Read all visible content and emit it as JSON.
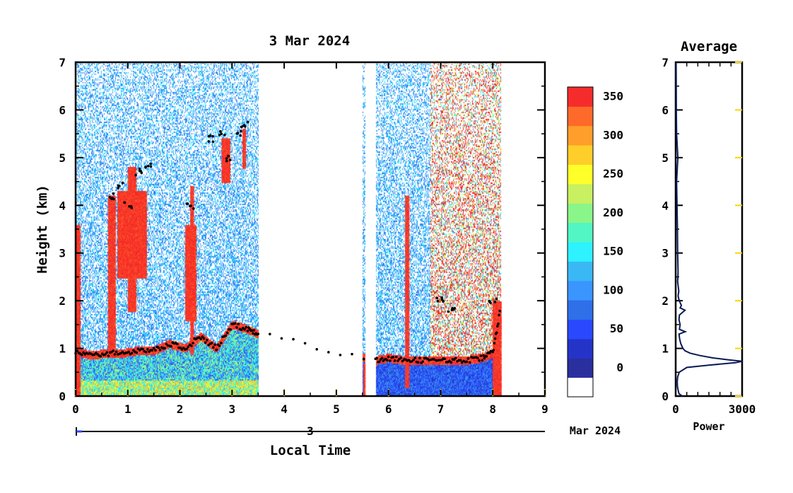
{
  "chart_data": [
    {
      "type": "heatmap",
      "title": "3 Mar 2024",
      "xlabel": "Local Time",
      "ylabel": "Height (km)",
      "xlim": [
        0,
        9
      ],
      "ylim": [
        0,
        7
      ],
      "x_ticks": [
        "0",
        "1",
        "2",
        "3",
        "4",
        "5",
        "6",
        "7",
        "8",
        "9"
      ],
      "y_ticks": [
        "0",
        "1",
        "2",
        "3",
        "4",
        "5",
        "6",
        "7"
      ],
      "date_axis": {
        "day_label": "3",
        "month_year_label": "Mar 2024"
      },
      "data_segments": [
        {
          "start": 0.0,
          "end": 3.5
        },
        {
          "start": 5.5,
          "end": 5.55
        },
        {
          "start": 5.75,
          "end": 8.15
        }
      ],
      "cloud_base_heights_km": {
        "x": [
          0.0,
          0.3,
          0.6,
          0.9,
          1.2,
          1.5,
          1.8,
          2.1,
          2.4,
          2.7,
          3.0,
          3.3,
          3.5,
          5.75,
          6.0,
          6.3,
          6.6,
          6.9,
          7.2,
          7.5,
          7.8,
          8.0,
          8.15
        ],
        "y": [
          0.95,
          0.85,
          0.9,
          0.9,
          0.95,
          0.95,
          1.1,
          1.0,
          1.25,
          1.0,
          1.5,
          1.4,
          1.3,
          0.75,
          0.8,
          0.75,
          0.75,
          0.75,
          0.75,
          0.75,
          0.8,
          0.9,
          1.85
        ]
      },
      "upper_cloud_tops_km": {
        "x": [
          0.7,
          0.85,
          1.0,
          1.2,
          1.4,
          2.2,
          2.6,
          2.8,
          2.95,
          3.1,
          3.25,
          7.0,
          7.2,
          8.0
        ],
        "y": [
          4.2,
          4.4,
          4.0,
          4.7,
          4.8,
          4.0,
          5.4,
          5.5,
          5.0,
          5.5,
          5.7,
          2.0,
          1.8,
          2.0
        ]
      },
      "colorbar": {
        "ticks": [
          "0",
          "50",
          "100",
          "150",
          "200",
          "250",
          "300",
          "350"
        ],
        "colors": [
          "#ffffff",
          "#2a2f9e",
          "#2534c8",
          "#2a49ff",
          "#2f6fe8",
          "#3a95ff",
          "#3ab8f5",
          "#2ef2ff",
          "#52f5c4",
          "#8af589",
          "#c8f060",
          "#ffff2a",
          "#ffce2a",
          "#ff9e2a",
          "#ff6a2a",
          "#f52c2c"
        ]
      }
    },
    {
      "type": "line",
      "title": "Average",
      "xlabel": "Power",
      "xlim": [
        0,
        3000
      ],
      "ylim": [
        0,
        7
      ],
      "x_ticks": [
        "0",
        "3000"
      ],
      "y_ticks": [
        "0",
        "1",
        "2",
        "3",
        "4",
        "5",
        "6",
        "7"
      ],
      "series": [
        {
          "values_height_km": [
            0.0,
            0.05,
            0.1,
            0.2,
            0.3,
            0.4,
            0.5,
            0.6,
            0.65,
            0.7,
            0.73,
            0.76,
            0.8,
            0.85,
            0.9,
            0.95,
            1.0,
            1.1,
            1.2,
            1.3,
            1.35,
            1.4,
            1.5,
            1.6,
            1.7,
            1.8,
            1.85,
            1.9,
            2.0,
            2.1,
            2.2,
            2.4,
            2.6,
            3.0,
            3.5,
            4.0,
            4.5,
            5.0,
            5.5,
            6.0,
            6.5,
            7.0
          ],
          "values_power": [
            300,
            150,
            120,
            80,
            70,
            90,
            160,
            500,
            1500,
            2700,
            3000,
            2400,
            1700,
            1100,
            650,
            420,
            330,
            230,
            180,
            150,
            430,
            170,
            200,
            150,
            170,
            420,
            200,
            260,
            160,
            110,
            140,
            90,
            110,
            90,
            80,
            60,
            40,
            100,
            40,
            30,
            25,
            20
          ]
        }
      ]
    }
  ],
  "colors": {
    "axis": "#000000",
    "tick_frame": "#ffd400",
    "profile_line": "#0a1a55"
  }
}
